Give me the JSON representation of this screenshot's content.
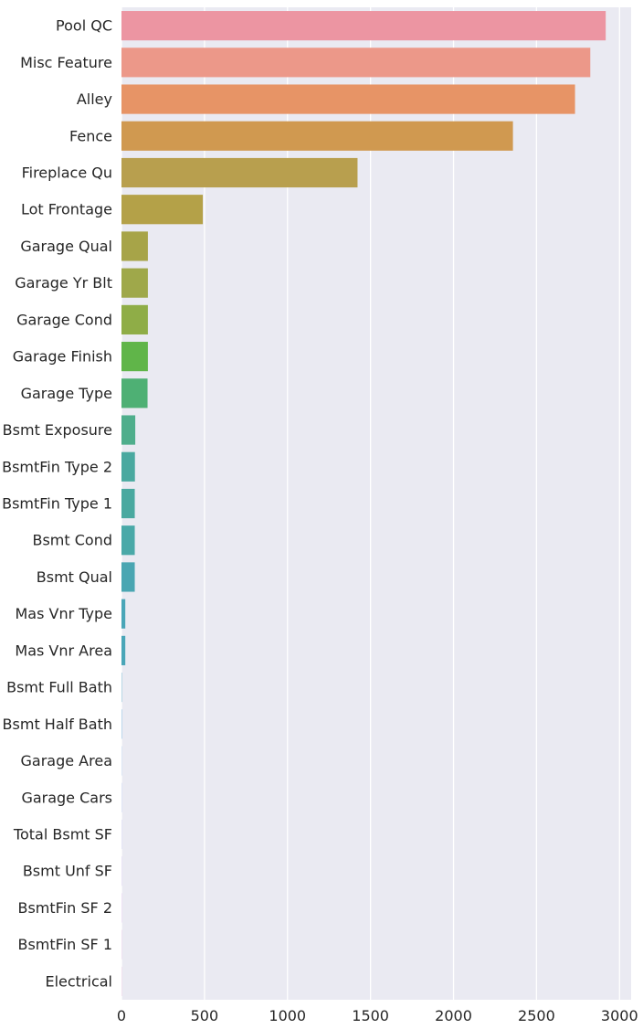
{
  "chart_data": {
    "type": "bar",
    "orientation": "horizontal",
    "title": "",
    "xlabel": "",
    "ylabel": "",
    "xlim": [
      0,
      3070
    ],
    "xticks": [
      0,
      500,
      1000,
      1500,
      2000,
      2500,
      3000
    ],
    "grid": true,
    "legend": "none",
    "background_color": "#eaeaf2",
    "categories": [
      "Pool QC",
      "Misc Feature",
      "Alley",
      "Fence",
      "Fireplace Qu",
      "Lot Frontage",
      "Garage Qual",
      "Garage Yr Blt",
      "Garage Cond",
      "Garage Finish",
      "Garage Type",
      "Bsmt Exposure",
      "BsmtFin Type 2",
      "BsmtFin Type 1",
      "Bsmt Cond",
      "Bsmt Qual",
      "Mas Vnr Type",
      "Mas Vnr Area",
      "Bsmt Full Bath",
      "Bsmt Half Bath",
      "Garage Area",
      "Garage Cars",
      "Total Bsmt SF",
      "Bsmt Unf SF",
      "BsmtFin SF 2",
      "BsmtFin SF 1",
      "Electrical"
    ],
    "values": [
      2917,
      2824,
      2732,
      2358,
      1422,
      490,
      159,
      159,
      159,
      159,
      157,
      83,
      81,
      80,
      80,
      80,
      23,
      23,
      2,
      2,
      1,
      1,
      1,
      1,
      1,
      1,
      1
    ],
    "colors": [
      "#ec95a2",
      "#ec9889",
      "#e79466",
      "#d09950",
      "#b89f4e",
      "#b4a148",
      "#a7a448",
      "#9fa84a",
      "#8fad47",
      "#60b549",
      "#4eb074",
      "#4fae8c",
      "#4aa9a0",
      "#4aa9a0",
      "#4aa9a8",
      "#4aa6b2",
      "#4aa6b8",
      "#4aa6b8",
      "#52a6c8",
      "#5aa6d8",
      "#6aa3e0",
      "#7ea1e8",
      "#9b9be8",
      "#b394e6",
      "#c88ae0",
      "#d88ad0",
      "#e38cc0"
    ]
  }
}
